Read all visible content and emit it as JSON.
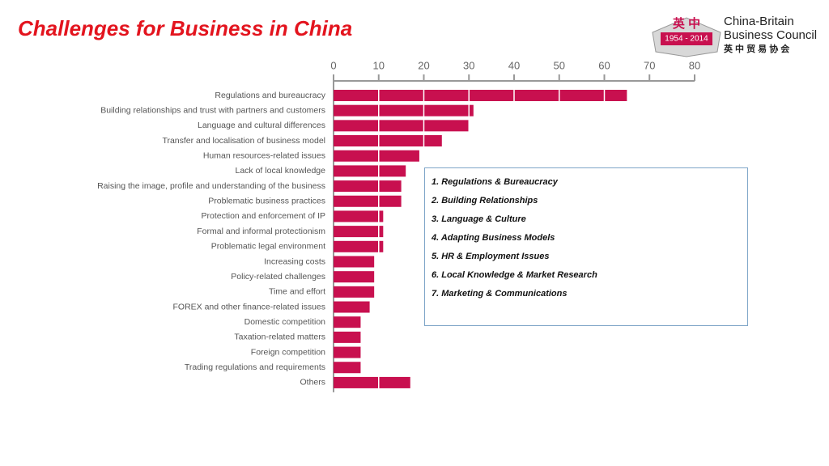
{
  "header": {
    "title": "Challenges for Business in China"
  },
  "logo": {
    "emblem_text": "英 中",
    "years": "1954 - 2014",
    "name_line1": "China-Britain",
    "name_line2": "Business Council",
    "chinese_name": "英 中 贸 易 协 会"
  },
  "chart_data": {
    "type": "bar",
    "orientation": "horizontal",
    "categories": [
      "Regulations and bureaucracy",
      "Building relationships and trust with partners and customers",
      "Language and cultural differences",
      "Transfer and localisation of business model",
      "Human resources-related issues",
      "Lack of local knowledge",
      "Raising the image, profile and understanding of the business",
      "Problematic business practices",
      "Protection and enforcement of IP",
      "Formal and informal protectionism",
      "Problematic legal environment",
      "Increasing costs",
      "Policy-related challenges",
      "Time and effort",
      "FOREX and other finance-related issues",
      "Domestic competition",
      "Taxation-related matters",
      "Foreign competition",
      "Trading regulations and requirements",
      "Others"
    ],
    "values": [
      65,
      31,
      30,
      24,
      19,
      16,
      15,
      15,
      11,
      11,
      11,
      9,
      9,
      9,
      8,
      6,
      6,
      6,
      6,
      17
    ],
    "color": "#c8104f",
    "xlim": [
      0,
      80
    ],
    "xticks": [
      0,
      10,
      20,
      30,
      40,
      50,
      60,
      70,
      80
    ],
    "grid": true
  },
  "summary_box": {
    "items": [
      "1. Regulations & Bureaucracy",
      "2. Building Relationships",
      "3. Language & Culture",
      "4. Adapting Business Models",
      "5. HR & Employment Issues",
      "6. Local Knowledge & Market Research",
      "7. Marketing & Communications"
    ]
  }
}
